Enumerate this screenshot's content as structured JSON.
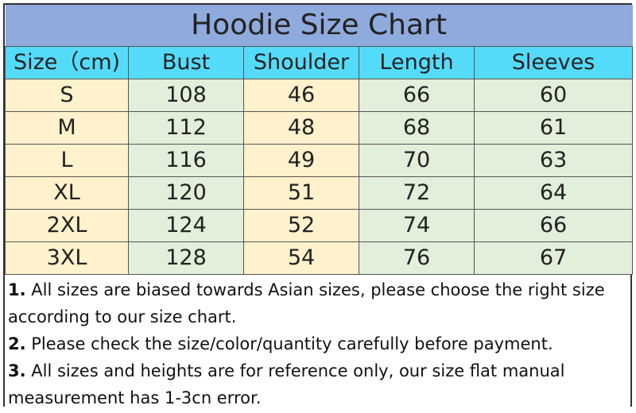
{
  "title": "Hoodie Size Chart",
  "headers": [
    "Size（cm)",
    "Bust",
    "Shoulder",
    "Length",
    "Sleeves"
  ],
  "rows": [
    [
      "S",
      "108",
      "46",
      "66",
      "60"
    ],
    [
      "M",
      "112",
      "48",
      "68",
      "61"
    ],
    [
      "L",
      "116",
      "49",
      "70",
      "63"
    ],
    [
      "XL",
      "120",
      "51",
      "72",
      "64"
    ],
    [
      "2XL",
      "124",
      "52",
      "74",
      "66"
    ],
    [
      "3XL",
      "128",
      "54",
      "76",
      "67"
    ]
  ],
  "notes": [
    {
      "num": "1.",
      "text": " All sizes are biased towards Asian sizes, please choose the right size according to our size chart."
    },
    {
      "num": "2.",
      "text": " Please check the size/color/quantity carefully before payment."
    },
    {
      "num": "3.",
      "text": " All sizes and heights are for reference only, our size flat manual measurement has 1-3cn error."
    }
  ],
  "colors": {
    "title_bg": "#8faadc",
    "header_bg": "#55dbfa",
    "cream": "#fff2cc",
    "green": "#e2efda"
  }
}
